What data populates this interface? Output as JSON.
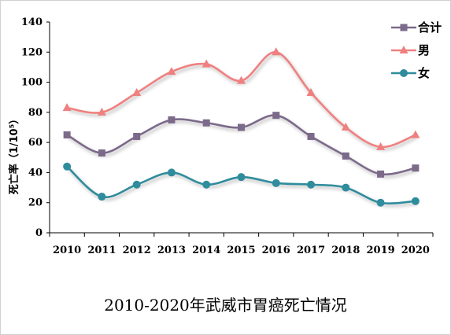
{
  "chart_data": {
    "type": "line",
    "title": "2010-2020年武威市胃癌死亡情况",
    "xlabel": "",
    "ylabel": "死亡率（1/10⁵）",
    "ylim": [
      0,
      140
    ],
    "yticks": [
      0,
      20,
      40,
      60,
      80,
      100,
      120,
      140
    ],
    "categories": [
      "2010",
      "2011",
      "2012",
      "2013",
      "2014",
      "2015",
      "2016",
      "2017",
      "2018",
      "2019",
      "2020"
    ],
    "series": [
      {
        "name": "合计",
        "marker": "square",
        "color": "#7b6a8a",
        "values": [
          65,
          53,
          64,
          75,
          73,
          70,
          78,
          64,
          51,
          39,
          43
        ]
      },
      {
        "name": "男",
        "marker": "triangle",
        "color": "#ef8080",
        "values": [
          83,
          80,
          93,
          107,
          112,
          101,
          120,
          93,
          70,
          57,
          65
        ]
      },
      {
        "name": "女",
        "marker": "circle",
        "color": "#2f8c9c",
        "values": [
          44,
          24,
          32,
          40,
          32,
          37,
          33,
          32,
          30,
          20,
          21
        ]
      }
    ],
    "legend_position": "top-right",
    "grid": false
  }
}
